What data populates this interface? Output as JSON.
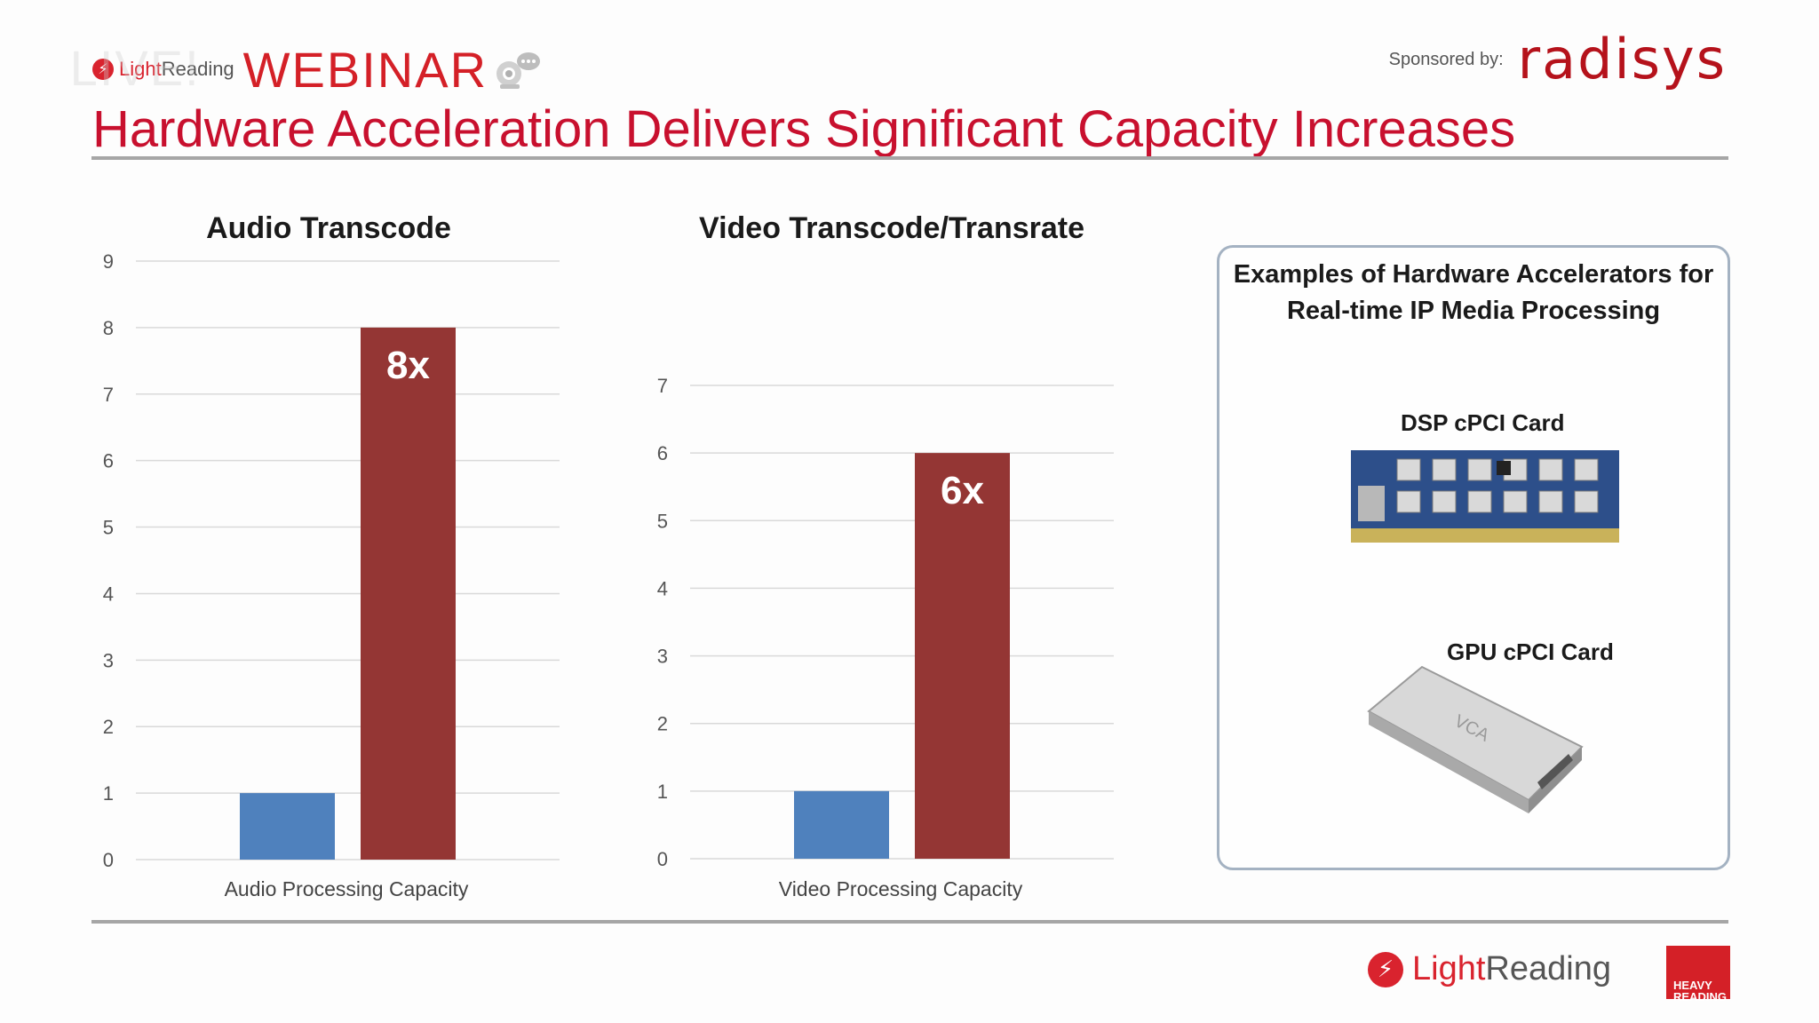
{
  "header": {
    "lr_logo_light": "Light",
    "lr_logo_reading": "Reading",
    "webinar_ghost": "LIVE!",
    "webinar": "WEBINAR",
    "sponsor_label": "Sponsored by:",
    "sponsor_name": "radisys"
  },
  "title": "Hardware Acceleration Delivers Significant Capacity Increases",
  "colors": {
    "title": "#c8102e",
    "baseline_bar": "#4f81bd",
    "accelerated_bar": "#943634",
    "box_border": "#a4b2c2"
  },
  "chart_data": [
    {
      "type": "bar",
      "title": "Audio Transcode",
      "xlabel": "Audio Processing Capacity",
      "ylabel": "",
      "ylim": [
        0,
        9
      ],
      "yticks": [
        0,
        1,
        2,
        3,
        4,
        5,
        6,
        7,
        8,
        9
      ],
      "grid": true,
      "legend": "none",
      "series": [
        {
          "values": [
            1
          ],
          "color": "#4f81bd"
        },
        {
          "values": [
            8
          ],
          "color": "#943634",
          "data_label": "8x"
        }
      ]
    },
    {
      "type": "bar",
      "title": "Video Transcode/Transrate",
      "xlabel": "Video Processing Capacity",
      "ylabel": "",
      "ylim": [
        0,
        7
      ],
      "yticks": [
        0,
        1,
        2,
        3,
        4,
        5,
        6,
        7
      ],
      "grid": true,
      "legend": "none",
      "series": [
        {
          "values": [
            1
          ],
          "color": "#4f81bd"
        },
        {
          "values": [
            6
          ],
          "color": "#943634",
          "data_label": "6x"
        }
      ]
    }
  ],
  "examples": {
    "title_line1": "Examples of Hardware Accelerators for",
    "title_line2": "Real-time IP Media Processing",
    "dsp_label": "DSP cPCI Card",
    "gpu_label": "GPU cPCI Card",
    "gpu_engraving": "VCA"
  },
  "footer": {
    "lr_light": "Light",
    "lr_reading": "Reading",
    "heavy_line1": "HEAVY",
    "heavy_line2": "READING"
  }
}
